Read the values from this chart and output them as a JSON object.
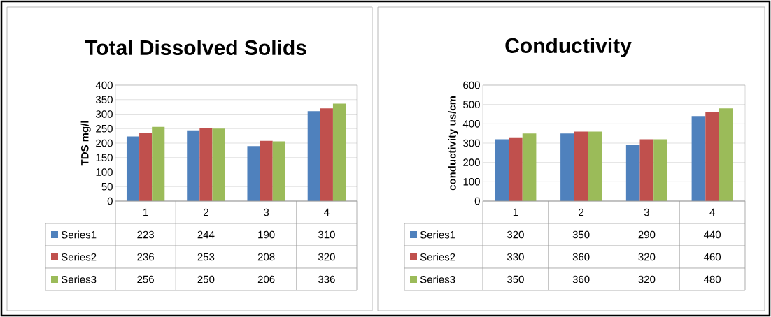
{
  "chart_data": [
    {
      "type": "bar",
      "title": "Total Dissolved Solids",
      "ylabel": "TDS mg/l",
      "categories": [
        "1",
        "2",
        "3",
        "4"
      ],
      "series": [
        {
          "name": "Series1",
          "color": "#4f81bd",
          "values": [
            223,
            244,
            190,
            310
          ]
        },
        {
          "name": "Series2",
          "color": "#c0504d",
          "values": [
            236,
            253,
            208,
            320
          ]
        },
        {
          "name": "Series3",
          "color": "#9bbb59",
          "values": [
            256,
            250,
            206,
            336
          ]
        }
      ],
      "ylim": [
        0,
        400
      ],
      "yticks": [
        0,
        50,
        100,
        150,
        200,
        250,
        300,
        350,
        400
      ],
      "grid": "y",
      "data_labels": true,
      "legend": "bottom"
    },
    {
      "type": "bar",
      "title": "Conductivity",
      "ylabel": "conductivity us/cm",
      "categories": [
        "1",
        "2",
        "3",
        "4"
      ],
      "series": [
        {
          "name": "Series1",
          "color": "#4f81bd",
          "values": [
            320,
            350,
            290,
            440
          ]
        },
        {
          "name": "Series2",
          "color": "#c0504d",
          "values": [
            330,
            360,
            320,
            460
          ]
        },
        {
          "name": "Series3",
          "color": "#9bbb59",
          "values": [
            350,
            360,
            320,
            480
          ]
        }
      ],
      "ylim": [
        0,
        600
      ],
      "yticks": [
        0,
        100,
        200,
        300,
        400,
        500,
        600
      ],
      "grid": "y",
      "data_labels": true,
      "legend": "bottom"
    }
  ]
}
